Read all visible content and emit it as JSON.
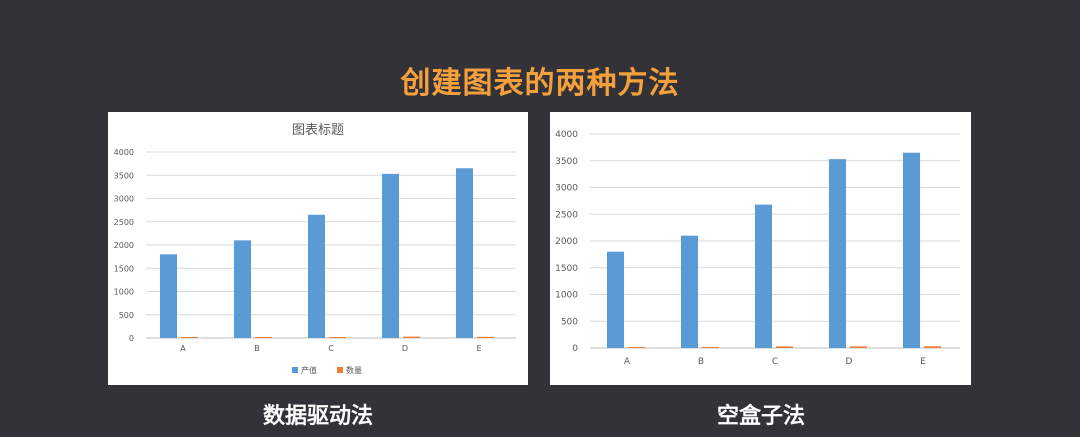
{
  "page": {
    "title": "创建图表的两种方法"
  },
  "captions": {
    "left": "数据驱动法",
    "right": "空盒子法"
  },
  "colors": {
    "background": "#333239",
    "title": "#f5a03a",
    "series_1": "#5b9bd5",
    "series_2": "#ed7d31",
    "grid": "#d9d9d9",
    "tick_text": "#595959"
  },
  "chart_data": [
    {
      "type": "bar",
      "title": "图表标题",
      "categories": [
        "A",
        "B",
        "C",
        "D",
        "E"
      ],
      "series": [
        {
          "name": "产值",
          "values": [
            1800,
            2100,
            2650,
            3530,
            3650
          ]
        },
        {
          "name": "数量",
          "values": [
            12,
            15,
            14,
            30,
            25
          ]
        }
      ],
      "ylim": [
        0,
        4000
      ],
      "yticks": [
        "0",
        "500",
        "1000",
        "1500",
        "2000",
        "2500",
        "3000",
        "3500",
        "4000"
      ],
      "grid": true,
      "legend": "bottom"
    },
    {
      "type": "bar",
      "title": "",
      "categories": [
        "A",
        "B",
        "C",
        "D",
        "E"
      ],
      "series": [
        {
          "values": [
            1800,
            2100,
            2680,
            3530,
            3650
          ]
        },
        {
          "values": [
            12,
            15,
            30,
            30,
            32
          ]
        }
      ],
      "ylim": [
        0,
        4000
      ],
      "yticks": [
        "0",
        "500",
        "1000",
        "1500",
        "2000",
        "2500",
        "3000",
        "3500",
        "4000"
      ],
      "grid": true,
      "legend": "none"
    }
  ]
}
